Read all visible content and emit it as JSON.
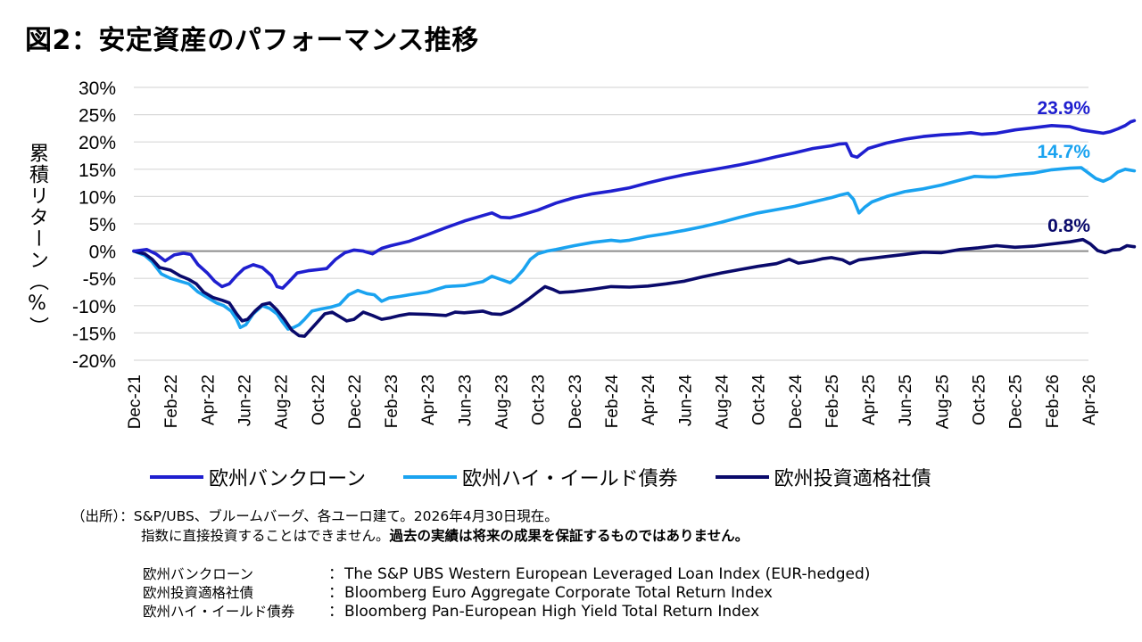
{
  "title": "図2：安定資産のパフォーマンス推移",
  "colors": {
    "loan": "#1f1fcf",
    "hy": "#1aa3f0",
    "ig": "#0a0a6b",
    "zero": "#8c8c8c",
    "grid": "#d9d9d9"
  },
  "chart_data": {
    "type": "line",
    "ylabel": "累積リターン（%）",
    "ylim": [
      -20,
      30
    ],
    "yticks": [
      "30%",
      "25%",
      "20%",
      "15%",
      "10%",
      "5%",
      "0%",
      "-5%",
      "-10%",
      "-15%",
      "-20%"
    ],
    "xticks": [
      "Dec-21",
      "Feb-22",
      "Apr-22",
      "Jun-22",
      "Aug-22",
      "Oct-22",
      "Dec-22",
      "Feb-23",
      "Apr-23",
      "Jun-23",
      "Aug-23",
      "Oct-23",
      "Dec-23",
      "Feb-24",
      "Apr-24",
      "Jun-24",
      "Aug-24",
      "Oct-24",
      "Dec-24",
      "Feb-25",
      "Apr-25",
      "Jun-25",
      "Aug-25",
      "Oct-25",
      "Dec-25",
      "Feb-26",
      "Apr-26"
    ],
    "x_unit": "months since Dec-21",
    "grid": true,
    "series": [
      {
        "name": "欧州バンクローン",
        "end_label": "23.9%",
        "points": [
          [
            0,
            0
          ],
          [
            0.7,
            0.3
          ],
          [
            1.2,
            -0.5
          ],
          [
            1.7,
            -1.8
          ],
          [
            2.2,
            -0.7
          ],
          [
            2.7,
            -0.4
          ],
          [
            3.1,
            -0.6
          ],
          [
            3.5,
            -2.5
          ],
          [
            4.0,
            -4.0
          ],
          [
            4.4,
            -5.5
          ],
          [
            4.8,
            -6.5
          ],
          [
            5.2,
            -6.0
          ],
          [
            5.6,
            -4.5
          ],
          [
            6.0,
            -3.2
          ],
          [
            6.5,
            -2.5
          ],
          [
            7.0,
            -3.0
          ],
          [
            7.5,
            -4.5
          ],
          [
            7.8,
            -6.5
          ],
          [
            8.1,
            -6.8
          ],
          [
            8.4,
            -5.8
          ],
          [
            8.9,
            -4.0
          ],
          [
            9.5,
            -3.6
          ],
          [
            10.0,
            -3.4
          ],
          [
            10.5,
            -3.2
          ],
          [
            11.0,
            -1.5
          ],
          [
            11.5,
            -0.3
          ],
          [
            12.0,
            0.2
          ],
          [
            12.5,
            0.0
          ],
          [
            13.0,
            -0.5
          ],
          [
            13.5,
            0.5
          ],
          [
            14.0,
            1.0
          ],
          [
            15.0,
            1.8
          ],
          [
            16.0,
            3.0
          ],
          [
            17.0,
            4.3
          ],
          [
            18.0,
            5.5
          ],
          [
            19.0,
            6.5
          ],
          [
            19.5,
            7.0
          ],
          [
            20.0,
            6.2
          ],
          [
            20.5,
            6.1
          ],
          [
            21.0,
            6.5
          ],
          [
            22.0,
            7.5
          ],
          [
            23.0,
            8.8
          ],
          [
            24.0,
            9.8
          ],
          [
            25.0,
            10.5
          ],
          [
            26.0,
            11.0
          ],
          [
            27.0,
            11.6
          ],
          [
            28.0,
            12.5
          ],
          [
            29.0,
            13.3
          ],
          [
            30.0,
            14.0
          ],
          [
            31.0,
            14.6
          ],
          [
            32.0,
            15.2
          ],
          [
            33.0,
            15.8
          ],
          [
            34.0,
            16.5
          ],
          [
            35.0,
            17.3
          ],
          [
            36.0,
            18.0
          ],
          [
            37.0,
            18.8
          ],
          [
            38.0,
            19.3
          ],
          [
            38.4,
            19.6
          ],
          [
            38.8,
            19.7
          ],
          [
            39.1,
            17.5
          ],
          [
            39.4,
            17.2
          ],
          [
            39.7,
            18.0
          ],
          [
            40.0,
            18.8
          ],
          [
            41.0,
            19.8
          ],
          [
            42.0,
            20.5
          ],
          [
            43.0,
            21.0
          ],
          [
            44.0,
            21.3
          ],
          [
            45.0,
            21.5
          ],
          [
            45.6,
            21.7
          ],
          [
            46.2,
            21.4
          ],
          [
            47.0,
            21.6
          ],
          [
            48.0,
            22.2
          ],
          [
            49.0,
            22.6
          ],
          [
            50.0,
            23.0
          ],
          [
            51.0,
            22.8
          ],
          [
            51.6,
            22.2
          ],
          [
            52.0,
            22.0
          ],
          [
            52.4,
            21.8
          ],
          [
            52.8,
            21.6
          ],
          [
            53.2,
            21.9
          ],
          [
            53.6,
            22.4
          ],
          [
            54.0,
            23.0
          ],
          [
            54.3,
            23.7
          ],
          [
            54.5,
            23.9
          ]
        ]
      },
      {
        "name": "欧州ハイ・イールド債券",
        "end_label": "14.7%",
        "points": [
          [
            0,
            0
          ],
          [
            0.6,
            -0.8
          ],
          [
            1.0,
            -2.0
          ],
          [
            1.5,
            -4.2
          ],
          [
            2.0,
            -5.0
          ],
          [
            2.5,
            -5.5
          ],
          [
            3.0,
            -6.0
          ],
          [
            3.5,
            -7.5
          ],
          [
            4.0,
            -8.5
          ],
          [
            4.5,
            -9.5
          ],
          [
            4.9,
            -10.0
          ],
          [
            5.3,
            -11.0
          ],
          [
            5.6,
            -12.5
          ],
          [
            5.8,
            -14.0
          ],
          [
            6.1,
            -13.5
          ],
          [
            6.5,
            -11.5
          ],
          [
            7.0,
            -10.0
          ],
          [
            7.4,
            -10.5
          ],
          [
            7.8,
            -11.5
          ],
          [
            8.1,
            -13.0
          ],
          [
            8.4,
            -14.3
          ],
          [
            8.7,
            -14.0
          ],
          [
            9.0,
            -13.5
          ],
          [
            9.3,
            -12.5
          ],
          [
            9.7,
            -11.0
          ],
          [
            10.2,
            -10.6
          ],
          [
            10.7,
            -10.3
          ],
          [
            11.2,
            -9.8
          ],
          [
            11.7,
            -8.0
          ],
          [
            12.2,
            -7.2
          ],
          [
            12.7,
            -7.8
          ],
          [
            13.1,
            -8.0
          ],
          [
            13.5,
            -9.2
          ],
          [
            13.9,
            -8.6
          ],
          [
            14.5,
            -8.3
          ],
          [
            15.0,
            -8.0
          ],
          [
            16.0,
            -7.5
          ],
          [
            17.0,
            -6.5
          ],
          [
            18.0,
            -6.3
          ],
          [
            19.0,
            -5.6
          ],
          [
            19.5,
            -4.6
          ],
          [
            20.0,
            -5.2
          ],
          [
            20.5,
            -5.8
          ],
          [
            20.8,
            -5.0
          ],
          [
            21.2,
            -3.5
          ],
          [
            21.6,
            -1.5
          ],
          [
            22.0,
            -0.5
          ],
          [
            22.5,
            0.0
          ],
          [
            23.0,
            0.3
          ],
          [
            24.0,
            1.0
          ],
          [
            25.0,
            1.6
          ],
          [
            26.0,
            2.0
          ],
          [
            26.5,
            1.8
          ],
          [
            27.0,
            2.0
          ],
          [
            28.0,
            2.7
          ],
          [
            29.0,
            3.2
          ],
          [
            30.0,
            3.8
          ],
          [
            31.0,
            4.5
          ],
          [
            32.0,
            5.3
          ],
          [
            33.0,
            6.2
          ],
          [
            34.0,
            7.0
          ],
          [
            35.0,
            7.6
          ],
          [
            36.0,
            8.2
          ],
          [
            37.0,
            9.0
          ],
          [
            38.0,
            9.8
          ],
          [
            38.5,
            10.3
          ],
          [
            38.9,
            10.6
          ],
          [
            39.2,
            9.5
          ],
          [
            39.5,
            7.0
          ],
          [
            39.8,
            8.0
          ],
          [
            40.2,
            9.0
          ],
          [
            41.0,
            10.0
          ],
          [
            42.0,
            10.9
          ],
          [
            43.0,
            11.4
          ],
          [
            44.0,
            12.1
          ],
          [
            45.0,
            13.0
          ],
          [
            45.8,
            13.7
          ],
          [
            46.5,
            13.6
          ],
          [
            47.0,
            13.6
          ],
          [
            48.0,
            14.0
          ],
          [
            49.0,
            14.3
          ],
          [
            50.0,
            14.9
          ],
          [
            51.0,
            15.2
          ],
          [
            51.6,
            15.3
          ],
          [
            52.0,
            14.3
          ],
          [
            52.4,
            13.3
          ],
          [
            52.8,
            12.8
          ],
          [
            53.2,
            13.4
          ],
          [
            53.6,
            14.5
          ],
          [
            54.0,
            15.0
          ],
          [
            54.5,
            14.7
          ]
        ]
      },
      {
        "name": "欧州投資適格社債",
        "end_label": "0.8%",
        "points": [
          [
            0,
            0
          ],
          [
            0.6,
            -0.5
          ],
          [
            1.0,
            -1.5
          ],
          [
            1.4,
            -3.0
          ],
          [
            2.0,
            -3.5
          ],
          [
            2.5,
            -4.5
          ],
          [
            3.0,
            -5.2
          ],
          [
            3.4,
            -6.0
          ],
          [
            3.8,
            -7.5
          ],
          [
            4.3,
            -8.5
          ],
          [
            4.8,
            -9.0
          ],
          [
            5.2,
            -9.5
          ],
          [
            5.6,
            -11.5
          ],
          [
            5.9,
            -12.8
          ],
          [
            6.2,
            -12.5
          ],
          [
            6.6,
            -11.0
          ],
          [
            7.0,
            -9.8
          ],
          [
            7.4,
            -9.5
          ],
          [
            7.8,
            -10.8
          ],
          [
            8.2,
            -12.5
          ],
          [
            8.6,
            -14.5
          ],
          [
            9.0,
            -15.5
          ],
          [
            9.3,
            -15.6
          ],
          [
            9.6,
            -14.5
          ],
          [
            10.0,
            -13.0
          ],
          [
            10.4,
            -11.5
          ],
          [
            10.8,
            -11.2
          ],
          [
            11.2,
            -12.0
          ],
          [
            11.6,
            -12.8
          ],
          [
            12.0,
            -12.5
          ],
          [
            12.5,
            -11.2
          ],
          [
            13.0,
            -11.8
          ],
          [
            13.5,
            -12.5
          ],
          [
            14.0,
            -12.2
          ],
          [
            14.5,
            -11.8
          ],
          [
            15.0,
            -11.5
          ],
          [
            16.0,
            -11.6
          ],
          [
            17.0,
            -11.8
          ],
          [
            17.5,
            -11.2
          ],
          [
            18.0,
            -11.3
          ],
          [
            19.0,
            -11.0
          ],
          [
            19.5,
            -11.5
          ],
          [
            20.0,
            -11.6
          ],
          [
            20.5,
            -11.0
          ],
          [
            21.0,
            -10.0
          ],
          [
            21.5,
            -8.8
          ],
          [
            22.0,
            -7.5
          ],
          [
            22.4,
            -6.5
          ],
          [
            22.8,
            -7.0
          ],
          [
            23.2,
            -7.6
          ],
          [
            24.0,
            -7.4
          ],
          [
            25.0,
            -7.0
          ],
          [
            26.0,
            -6.5
          ],
          [
            27.0,
            -6.6
          ],
          [
            28.0,
            -6.4
          ],
          [
            29.0,
            -6.0
          ],
          [
            30.0,
            -5.5
          ],
          [
            31.0,
            -4.7
          ],
          [
            32.0,
            -4.0
          ],
          [
            33.0,
            -3.4
          ],
          [
            34.0,
            -2.8
          ],
          [
            35.0,
            -2.3
          ],
          [
            35.7,
            -1.5
          ],
          [
            36.2,
            -2.2
          ],
          [
            37.0,
            -1.8
          ],
          [
            37.5,
            -1.4
          ],
          [
            38.0,
            -1.2
          ],
          [
            38.6,
            -1.6
          ],
          [
            39.0,
            -2.3
          ],
          [
            39.5,
            -1.6
          ],
          [
            40.0,
            -1.4
          ],
          [
            41.0,
            -1.0
          ],
          [
            42.0,
            -0.6
          ],
          [
            43.0,
            -0.2
          ],
          [
            44.0,
            -0.3
          ],
          [
            45.0,
            0.3
          ],
          [
            46.0,
            0.6
          ],
          [
            47.0,
            1.0
          ],
          [
            48.0,
            0.7
          ],
          [
            49.0,
            0.9
          ],
          [
            50.0,
            1.3
          ],
          [
            51.0,
            1.7
          ],
          [
            51.7,
            2.1
          ],
          [
            52.1,
            1.3
          ],
          [
            52.5,
            0.1
          ],
          [
            52.9,
            -0.3
          ],
          [
            53.3,
            0.2
          ],
          [
            53.7,
            0.3
          ],
          [
            54.1,
            1.0
          ],
          [
            54.5,
            0.8
          ]
        ]
      }
    ]
  },
  "legend": [
    {
      "label": "欧州バンクローン",
      "key": "loan"
    },
    {
      "label": "欧州ハイ・イールド債券",
      "key": "hy"
    },
    {
      "label": "欧州投資適格社債",
      "key": "ig"
    }
  ],
  "source": {
    "line1": "（出所）：S&P/UBS、ブルームバーグ、各ユーロ建て。2026年4月30日現在。",
    "line2_plain": "指数に直接投資することはできません。",
    "line2_bold": "過去の実績は将来の成果を保証するものではありません。"
  },
  "definitions": [
    {
      "name": "欧州バンクローン",
      "colon": "：",
      "desc": "The S&P UBS Western European Leveraged Loan Index (EUR-hedged)"
    },
    {
      "name": "欧州投資適格社債",
      "colon": "：",
      "desc": "Bloomberg Euro Aggregate Corporate Total Return Index"
    },
    {
      "name": "欧州ハイ・イールド債券",
      "colon": "：",
      "desc": "Bloomberg Pan-European High Yield Total Return Index"
    }
  ]
}
